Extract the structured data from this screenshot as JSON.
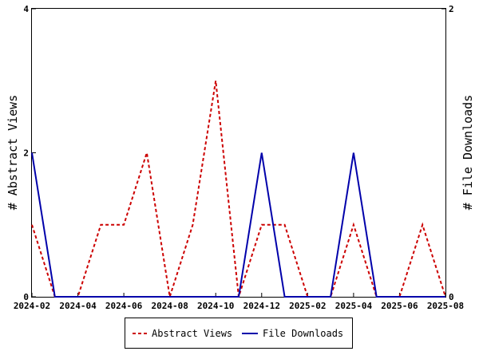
{
  "chart_data": {
    "type": "line",
    "x": [
      "2024-02",
      "2024-03",
      "2024-04",
      "2024-05",
      "2024-06",
      "2024-07",
      "2024-08",
      "2024-09",
      "2024-10",
      "2024-11",
      "2024-12",
      "2025-01",
      "2025-02",
      "2025-03",
      "2025-04",
      "2025-05",
      "2025-06",
      "2025-07",
      "2025-08"
    ],
    "x_tick_labels": [
      "2024-02",
      "2024-04",
      "2024-06",
      "2024-08",
      "2024-10",
      "2024-12",
      "2025-02",
      "2025-04",
      "2025-06",
      "2025-08"
    ],
    "series": [
      {
        "name": "Abstract Views",
        "axis": "left",
        "color": "#cc0000",
        "dash": "dashed",
        "values": [
          1,
          0,
          0,
          1,
          1,
          2,
          0,
          1,
          3,
          0,
          1,
          1,
          0,
          0,
          1,
          0,
          0,
          1,
          0
        ]
      },
      {
        "name": "File Downloads",
        "axis": "right",
        "color": "#0000aa",
        "dash": "solid",
        "values": [
          1,
          0,
          0,
          0,
          0,
          0,
          0,
          0,
          0,
          0,
          1,
          0,
          0,
          0,
          1,
          0,
          0,
          0,
          0
        ]
      }
    ],
    "ylabel": "# Abstract Views",
    "y2label": "# File Downloads",
    "ylim": [
      0,
      4
    ],
    "y2lim": [
      0,
      2
    ],
    "y_ticks": [
      "0",
      "2",
      "4"
    ],
    "y2_ticks": [
      "0",
      "2"
    ],
    "grid": false,
    "legend_position": "bottom"
  }
}
